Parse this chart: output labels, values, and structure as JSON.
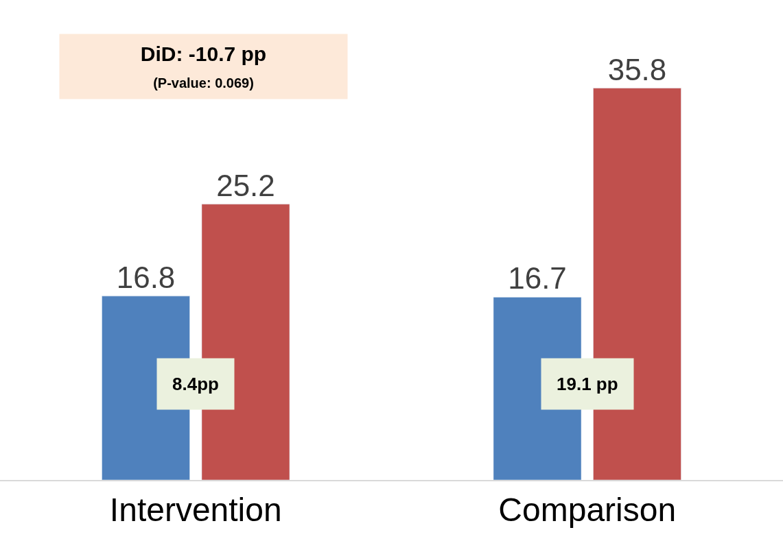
{
  "chart_data": {
    "type": "bar",
    "categories": [
      "Intervention",
      "Comparison"
    ],
    "series": [
      {
        "color": "#4f81bd",
        "values": [
          16.8,
          16.7
        ]
      },
      {
        "color": "#c0504d",
        "values": [
          25.2,
          35.8
        ]
      }
    ],
    "data_labels": true,
    "annotations": [
      "DiD: -10.7 pp",
      "(P-value: 0.069)",
      "8.4pp",
      "19.1 pp"
    ]
  }
}
